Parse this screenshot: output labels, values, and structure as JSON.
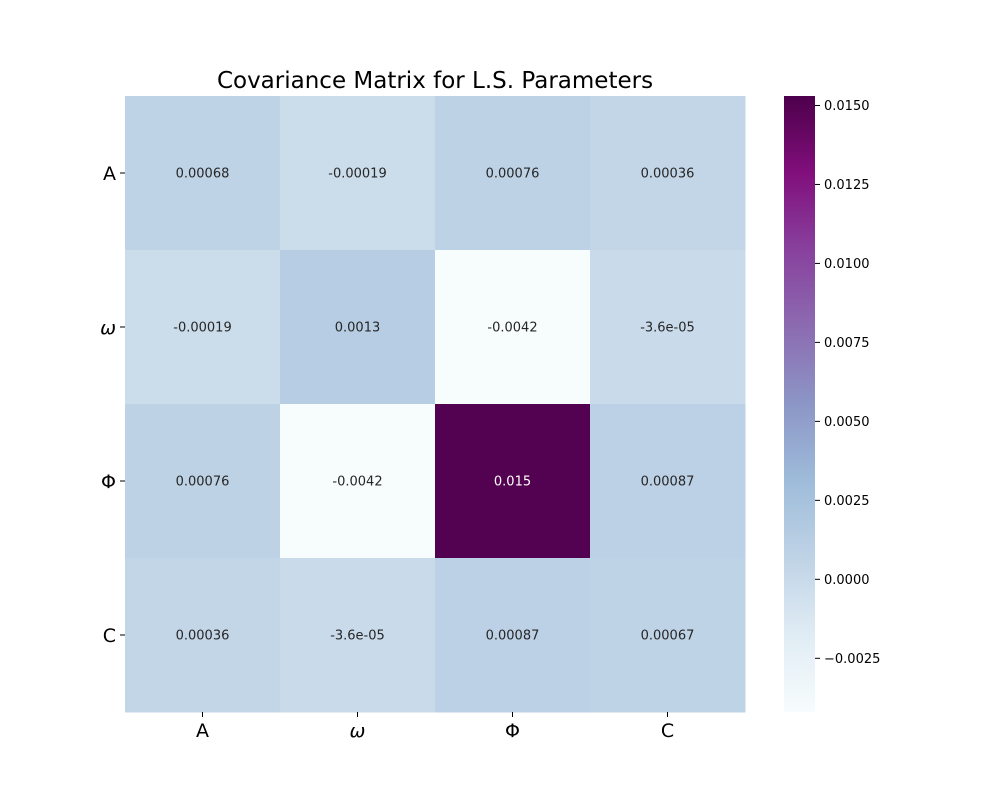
{
  "chart_data": {
    "type": "heatmap",
    "title": "Covariance Matrix for L.S. Parameters",
    "row_labels": [
      "A",
      "ω",
      "Φ",
      "C"
    ],
    "col_labels": [
      "A",
      "ω",
      "Φ",
      "C"
    ],
    "values": [
      [
        0.00068,
        -0.00019,
        0.00076,
        0.00036
      ],
      [
        -0.00019,
        0.0013,
        -0.0042,
        -3.6e-05
      ],
      [
        0.00076,
        -0.0042,
        0.015,
        0.00087
      ],
      [
        0.00036,
        -3.6e-05,
        0.00087,
        0.00067
      ]
    ],
    "annotations": [
      [
        "0.00068",
        "-0.00019",
        "0.00076",
        "0.00036"
      ],
      [
        "-0.00019",
        "0.0013",
        "-0.0042",
        "-3.6e-05"
      ],
      [
        "0.00076",
        "-0.0042",
        "0.015",
        "0.00087"
      ],
      [
        "0.00036",
        "-3.6e-05",
        "0.00087",
        "0.00067"
      ]
    ],
    "colormap": "BuPu",
    "colormap_stops": [
      "#f7fcfd",
      "#e0ecf4",
      "#bfd3e6",
      "#9ebcda",
      "#8c96c6",
      "#8c6bb1",
      "#88419d",
      "#810f7c",
      "#4d004b"
    ],
    "vmin": -0.0042,
    "vmax": 0.0153,
    "colorbar": {
      "ticks": [
        -0.0025,
        0.0,
        0.0025,
        0.005,
        0.0075,
        0.01,
        0.0125,
        0.015
      ],
      "tick_labels": [
        "−0.0025",
        "0.0000",
        "0.0025",
        "0.0050",
        "0.0075",
        "0.0100",
        "0.0125",
        "0.0150"
      ]
    }
  }
}
